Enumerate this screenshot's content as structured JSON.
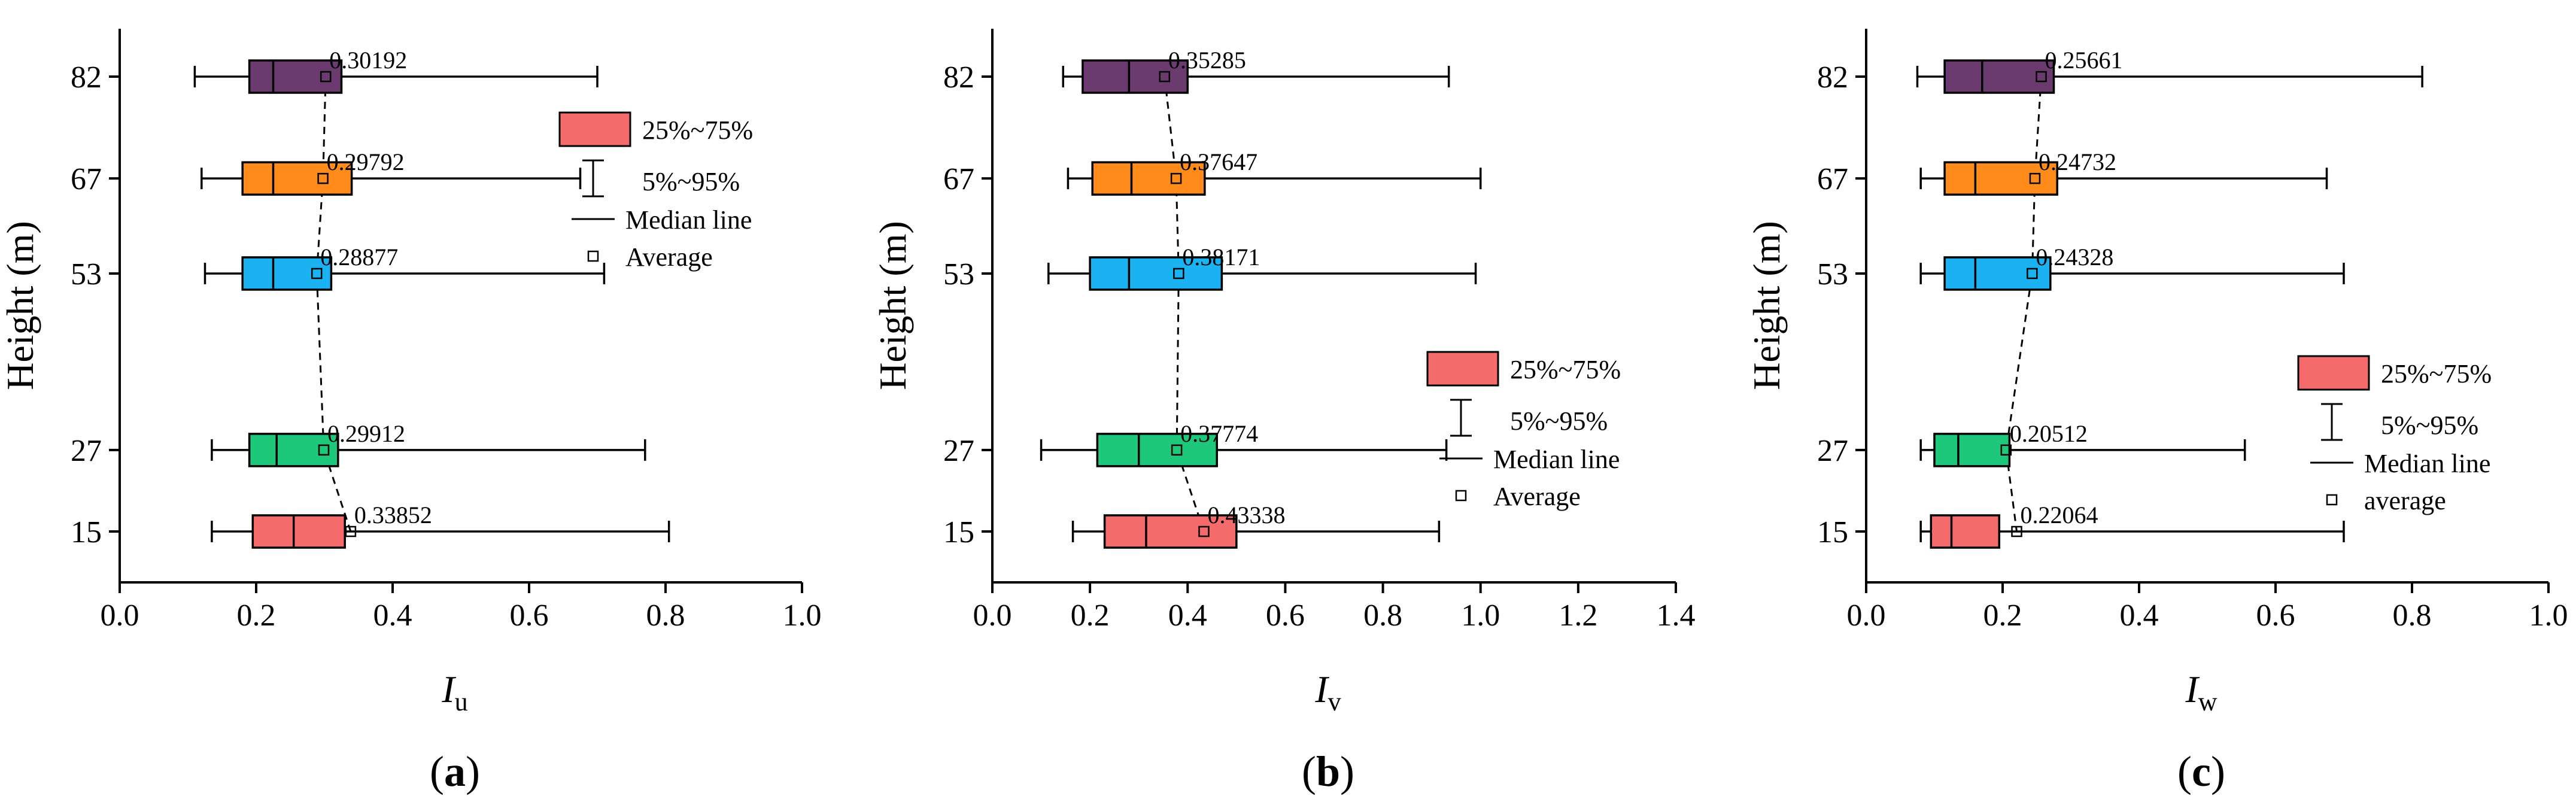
{
  "chart_data": [
    {
      "type": "box",
      "panel_label": "a",
      "ylabel": "Height (m)",
      "xlabel_main": "I",
      "xlabel_sub": "u",
      "xlim": [
        0,
        1.0
      ],
      "xticks": [
        0.0,
        0.2,
        0.4,
        0.6,
        0.8,
        1.0
      ],
      "xtick_labels": [
        "0.0",
        "0.2",
        "0.4",
        "0.6",
        "0.8",
        "1.0"
      ],
      "categories": [
        "82",
        "67",
        "53",
        "27",
        "15"
      ],
      "boxes": [
        {
          "height": 82,
          "height_label": "82",
          "color": "#6b3a6e",
          "p5": 0.11,
          "q1": 0.19,
          "median": 0.225,
          "q3": 0.325,
          "p95": 0.7,
          "mean": 0.30192,
          "mean_label": "0.30192"
        },
        {
          "height": 67,
          "height_label": "67",
          "color": "#ff8c1a",
          "p5": 0.12,
          "q1": 0.18,
          "median": 0.225,
          "q3": 0.34,
          "p95": 0.675,
          "mean": 0.29792,
          "mean_label": "0.29792"
        },
        {
          "height": 53,
          "height_label": "53",
          "color": "#1ab2f0",
          "p5": 0.125,
          "q1": 0.18,
          "median": 0.225,
          "q3": 0.31,
          "p95": 0.71,
          "mean": 0.28877,
          "mean_label": "0.28877"
        },
        {
          "height": 27,
          "height_label": "27",
          "color": "#1ec87a",
          "p5": 0.135,
          "q1": 0.19,
          "median": 0.23,
          "q3": 0.32,
          "p95": 0.77,
          "mean": 0.29912,
          "mean_label": "0.29912"
        },
        {
          "height": 15,
          "height_label": "15",
          "color": "#f56b6b",
          "p5": 0.135,
          "q1": 0.195,
          "median": 0.255,
          "q3": 0.33,
          "p95": 0.805,
          "mean": 0.33852,
          "mean_label": "0.33852"
        }
      ],
      "legend": {
        "placement": "right-upper",
        "box": "25%~75%",
        "whisker": "5%~95%",
        "median": "Median line",
        "mean": "Average"
      }
    },
    {
      "type": "box",
      "panel_label": "b",
      "ylabel": "Height (m)",
      "xlabel_main": "I",
      "xlabel_sub": "v",
      "xlim": [
        0,
        1.4
      ],
      "xticks": [
        0.0,
        0.2,
        0.4,
        0.6,
        0.8,
        1.0,
        1.2,
        1.4
      ],
      "xtick_labels": [
        "0.0",
        "0.2",
        "0.4",
        "0.6",
        "0.8",
        "1.0",
        "1.2",
        "1.4"
      ],
      "categories": [
        "82",
        "67",
        "53",
        "27",
        "15"
      ],
      "boxes": [
        {
          "height": 82,
          "height_label": "82",
          "color": "#6b3a6e",
          "p5": 0.145,
          "q1": 0.185,
          "median": 0.28,
          "q3": 0.4,
          "p95": 0.935,
          "mean": 0.35285,
          "mean_label": "0.35285"
        },
        {
          "height": 67,
          "height_label": "67",
          "color": "#ff8c1a",
          "p5": 0.155,
          "q1": 0.205,
          "median": 0.285,
          "q3": 0.435,
          "p95": 1.0,
          "mean": 0.37647,
          "mean_label": "0.37647"
        },
        {
          "height": 53,
          "height_label": "53",
          "color": "#1ab2f0",
          "p5": 0.115,
          "q1": 0.2,
          "median": 0.28,
          "q3": 0.47,
          "p95": 0.99,
          "mean": 0.38171,
          "mean_label": "0.38171"
        },
        {
          "height": 27,
          "height_label": "27",
          "color": "#1ec87a",
          "p5": 0.1,
          "q1": 0.215,
          "median": 0.3,
          "q3": 0.46,
          "p95": 0.93,
          "mean": 0.37774,
          "mean_label": "0.37774"
        },
        {
          "height": 15,
          "height_label": "15",
          "color": "#f56b6b",
          "p5": 0.165,
          "q1": 0.23,
          "median": 0.315,
          "q3": 0.5,
          "p95": 0.915,
          "mean": 0.43338,
          "mean_label": "0.43338"
        }
      ],
      "legend": {
        "placement": "right-middle",
        "box": "25%~75%",
        "whisker": "5%~95%",
        "median": "Median line",
        "mean": "Average"
      }
    },
    {
      "type": "box",
      "panel_label": "c",
      "ylabel": "Height (m)",
      "xlabel_main": "I",
      "xlabel_sub": "w",
      "xlim": [
        0,
        1.0
      ],
      "xticks": [
        0.0,
        0.2,
        0.4,
        0.6,
        0.8,
        1.0
      ],
      "xtick_labels": [
        "0.0",
        "0.2",
        "0.4",
        "0.6",
        "0.8",
        "1.0"
      ],
      "categories": [
        "82",
        "67",
        "53",
        "27",
        "15"
      ],
      "boxes": [
        {
          "height": 82,
          "height_label": "82",
          "color": "#6b3a6e",
          "p5": 0.075,
          "q1": 0.115,
          "median": 0.17,
          "q3": 0.275,
          "p95": 0.815,
          "mean": 0.25661,
          "mean_label": "0.25661"
        },
        {
          "height": 67,
          "height_label": "67",
          "color": "#ff8c1a",
          "p5": 0.08,
          "q1": 0.115,
          "median": 0.16,
          "q3": 0.28,
          "p95": 0.675,
          "mean": 0.24732,
          "mean_label": "0.24732"
        },
        {
          "height": 53,
          "height_label": "53",
          "color": "#1ab2f0",
          "p5": 0.08,
          "q1": 0.115,
          "median": 0.16,
          "q3": 0.27,
          "p95": 0.7,
          "mean": 0.24328,
          "mean_label": "0.24328"
        },
        {
          "height": 27,
          "height_label": "27",
          "color": "#1ec87a",
          "p5": 0.08,
          "q1": 0.1,
          "median": 0.135,
          "q3": 0.21,
          "p95": 0.555,
          "mean": 0.20512,
          "mean_label": "0.20512"
        },
        {
          "height": 15,
          "height_label": "15",
          "color": "#f56b6b",
          "p5": 0.08,
          "q1": 0.095,
          "median": 0.125,
          "q3": 0.195,
          "p95": 0.7,
          "mean": 0.22064,
          "mean_label": "0.22064"
        }
      ],
      "legend": {
        "placement": "right-middle",
        "box": "25%~75%",
        "whisker": "5%~95%",
        "median": "Median line",
        "mean": "average"
      }
    }
  ]
}
